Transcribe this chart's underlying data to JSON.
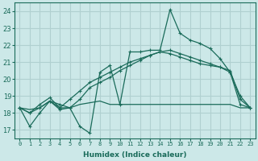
{
  "background_color": "#cce8e8",
  "grid_color": "#b0d0d0",
  "line_color": "#1a6b5a",
  "xlabel": "Humidex (Indice chaleur)",
  "xlim": [
    -0.5,
    23.5
  ],
  "ylim": [
    16.5,
    24.5
  ],
  "yticks": [
    17,
    18,
    19,
    20,
    21,
    22,
    23,
    24
  ],
  "xticks": [
    0,
    1,
    2,
    3,
    4,
    5,
    6,
    7,
    8,
    9,
    10,
    11,
    12,
    13,
    14,
    15,
    16,
    17,
    18,
    19,
    20,
    21,
    22,
    23
  ],
  "series": [
    [
      18.3,
      17.2,
      18.0,
      18.7,
      18.2,
      18.3,
      17.2,
      16.8,
      20.4,
      20.8,
      18.5,
      21.6,
      21.6,
      21.7,
      21.7,
      24.1,
      22.7,
      22.3,
      22.1,
      21.8,
      21.2,
      20.4,
      19.0,
      18.3
    ],
    [
      18.3,
      18.2,
      18.3,
      18.7,
      18.3,
      18.3,
      18.5,
      18.6,
      18.7,
      18.5,
      18.5,
      18.5,
      18.5,
      18.5,
      18.5,
      18.5,
      18.5,
      18.5,
      18.5,
      18.5,
      18.5,
      18.5,
      18.3,
      18.3
    ],
    [
      18.3,
      18.0,
      18.3,
      18.7,
      18.5,
      18.3,
      18.8,
      19.5,
      19.8,
      20.1,
      20.5,
      20.8,
      21.1,
      21.4,
      21.6,
      21.5,
      21.3,
      21.1,
      20.9,
      20.8,
      20.7,
      20.5,
      18.8,
      18.3
    ],
    [
      18.3,
      18.0,
      18.5,
      18.9,
      18.3,
      18.8,
      19.3,
      19.8,
      20.1,
      20.4,
      20.7,
      21.0,
      21.2,
      21.4,
      21.6,
      21.7,
      21.5,
      21.3,
      21.1,
      20.9,
      20.7,
      20.4,
      18.5,
      18.3
    ]
  ],
  "has_markers": [
    true,
    false,
    true,
    true
  ],
  "marker_size": 3.0,
  "marker": "+"
}
